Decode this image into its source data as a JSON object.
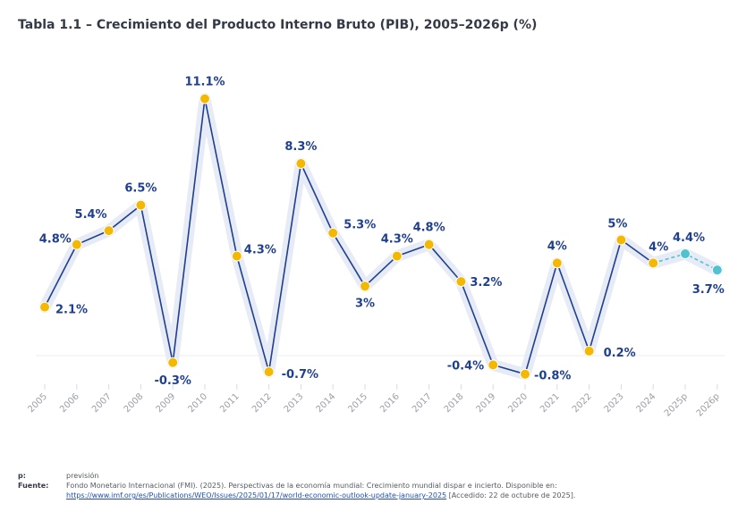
{
  "title": "Tabla 1.1 – Crecimiento del Producto Interno Bruto (PIB), 2005–2026p (%)",
  "colors": {
    "line": "#1f3f8f",
    "marker": "#f5b800",
    "projection": "#4fc3cf",
    "band": "#e6ebf5",
    "label": "#1f3f8f"
  },
  "chart_data": {
    "type": "line",
    "title": "Tabla 1.1 – Crecimiento del Producto Interno Bruto (PIB), 2005–2026p (%)",
    "xlabel": "",
    "ylabel": "",
    "ylim": [
      -1.5,
      12
    ],
    "grid": false,
    "categories": [
      "2005",
      "2006",
      "2007",
      "2008",
      "2009",
      "2010",
      "2011",
      "2012",
      "2013",
      "2014",
      "2015",
      "2016",
      "2017",
      "2018",
      "2019",
      "2020",
      "2021",
      "2022",
      "2023",
      "2024",
      "2025p",
      "2026p"
    ],
    "values": [
      2.1,
      4.8,
      5.4,
      6.5,
      -0.3,
      11.1,
      4.3,
      -0.7,
      8.3,
      5.3,
      3.0,
      4.3,
      4.8,
      3.2,
      -0.4,
      -0.8,
      4.0,
      0.2,
      5.0,
      4.0,
      4.4,
      3.7
    ],
    "labels": [
      "2.1%",
      "4.8%",
      "5.4%",
      "6.5%",
      "-0.3%",
      "11.1%",
      "4.3%",
      "-0.7%",
      "8.3%",
      "5.3%",
      "3%",
      "4.3%",
      "4.8%",
      "3.2%",
      "-0.4%",
      "-0.8%",
      "4%",
      "0.2%",
      "5%",
      "4%",
      "4.4%",
      "3.7%"
    ],
    "projected": [
      false,
      false,
      false,
      false,
      false,
      false,
      false,
      false,
      false,
      false,
      false,
      false,
      false,
      false,
      false,
      false,
      false,
      false,
      false,
      false,
      true,
      true
    ]
  },
  "notes": {
    "p_key": "p:",
    "p_text": "previsión",
    "source_key": "Fuente:",
    "source_text": "Fondo Monetario Internacional (FMI). (2025). Perspectivas de la economía mundial: Crecimiento mundial dispar e incierto. Disponible en: ",
    "source_link": "https://www.imf.org/es/Publications/WEO/Issues/2025/01/17/world-economic-outlook-update-january-2025",
    "source_access": " [Accedido: 22 de octubre de 2025]."
  }
}
